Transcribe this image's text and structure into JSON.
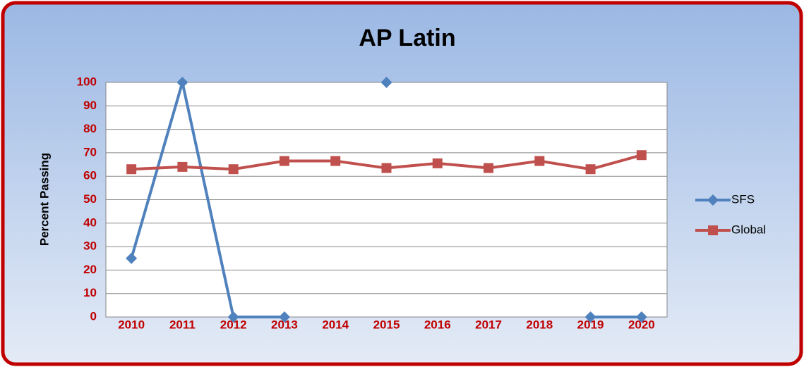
{
  "chart_data": {
    "type": "line",
    "title": "AP Latin",
    "ylabel": "Percent Passing",
    "categories": [
      "2010",
      "2011",
      "2012",
      "2013",
      "2014",
      "2015",
      "2016",
      "2017",
      "2018",
      "2019",
      "2020"
    ],
    "series": [
      {
        "name": "SFS",
        "color": "#4f81bd",
        "values": [
          25,
          100,
          0,
          0,
          null,
          100,
          null,
          null,
          null,
          0,
          0
        ]
      },
      {
        "name": "Global",
        "color": "#c0504d",
        "values": [
          63,
          64,
          63,
          66.5,
          66.5,
          63.5,
          65.5,
          63.5,
          66.5,
          63,
          69
        ]
      }
    ],
    "ylim": [
      0,
      100
    ],
    "yticks": [
      0,
      10,
      20,
      30,
      40,
      50,
      60,
      70,
      80,
      90,
      100
    ],
    "grid": true,
    "legend": "right"
  }
}
